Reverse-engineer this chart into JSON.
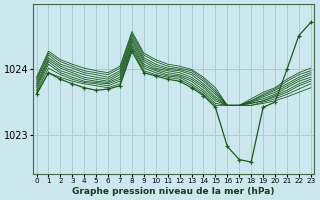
{
  "title": "Graphe pression niveau de la mer (hPa)",
  "background_color": "#cce8ee",
  "grid_color": "#aaccd4",
  "line_color": "#1a5c1a",
  "x_labels": [
    "0",
    "1",
    "2",
    "3",
    "4",
    "5",
    "6",
    "7",
    "8",
    "9",
    "10",
    "11",
    "12",
    "13",
    "14",
    "15",
    "16",
    "17",
    "18",
    "19",
    "20",
    "21",
    "22",
    "23"
  ],
  "yticks": [
    1023,
    1024
  ],
  "ylim": [
    1022.4,
    1025.0
  ],
  "xlim": [
    -0.3,
    23.3
  ],
  "main_line": {
    "x": [
      0,
      1,
      2,
      3,
      4,
      5,
      6,
      7,
      8,
      9,
      10,
      11,
      12,
      13,
      14,
      15,
      16,
      17,
      18,
      19,
      20,
      21,
      22,
      23
    ],
    "y": [
      1023.62,
      1023.95,
      1023.85,
      1023.78,
      1023.72,
      1023.68,
      1023.7,
      1023.75,
      1024.28,
      1023.95,
      1023.9,
      1023.85,
      1023.82,
      1023.72,
      1023.6,
      1023.42,
      1022.82,
      1022.62,
      1022.58,
      1023.42,
      1023.5,
      1024.0,
      1024.52,
      1024.72
    ]
  },
  "envelope_lines": [
    {
      "x": [
        0,
        1,
        2,
        3,
        4,
        5,
        6,
        7,
        8,
        9,
        10,
        11,
        12,
        13,
        14,
        15,
        16,
        17,
        18,
        19,
        20,
        21,
        22,
        23
      ],
      "y": [
        1023.62,
        1023.95,
        1023.88,
        1023.82,
        1023.78,
        1023.75,
        1023.72,
        1023.78,
        1024.32,
        1023.98,
        1023.92,
        1023.88,
        1023.85,
        1023.75,
        1023.62,
        1023.45,
        1023.45,
        1023.45,
        1023.45,
        1023.48,
        1023.52,
        1023.58,
        1023.65,
        1023.72
      ]
    },
    {
      "x": [
        0,
        1,
        2,
        3,
        4,
        5,
        6,
        7,
        8,
        9,
        10,
        11,
        12,
        13,
        14,
        15,
        16,
        17,
        18,
        19,
        20,
        21,
        22,
        23
      ],
      "y": [
        1023.65,
        1024.02,
        1023.92,
        1023.85,
        1023.8,
        1023.78,
        1023.75,
        1023.82,
        1024.35,
        1024.02,
        1023.95,
        1023.9,
        1023.88,
        1023.78,
        1023.65,
        1023.48,
        1023.45,
        1023.45,
        1023.45,
        1023.5,
        1023.55,
        1023.62,
        1023.7,
        1023.78
      ]
    },
    {
      "x": [
        0,
        1,
        2,
        3,
        4,
        5,
        6,
        7,
        8,
        9,
        10,
        11,
        12,
        13,
        14,
        15,
        16,
        17,
        18,
        19,
        20,
        21,
        22,
        23
      ],
      "y": [
        1023.68,
        1024.08,
        1023.95,
        1023.88,
        1023.82,
        1023.8,
        1023.78,
        1023.85,
        1024.38,
        1024.05,
        1023.98,
        1023.92,
        1023.9,
        1023.82,
        1023.68,
        1023.52,
        1023.45,
        1023.45,
        1023.48,
        1023.52,
        1023.58,
        1023.65,
        1023.75,
        1023.82
      ]
    },
    {
      "x": [
        0,
        1,
        2,
        3,
        4,
        5,
        6,
        7,
        8,
        9,
        10,
        11,
        12,
        13,
        14,
        15,
        16,
        17,
        18,
        19,
        20,
        21,
        22,
        23
      ],
      "y": [
        1023.72,
        1024.12,
        1023.98,
        1023.92,
        1023.85,
        1023.82,
        1023.8,
        1023.88,
        1024.42,
        1024.08,
        1024.0,
        1023.95,
        1023.92,
        1023.85,
        1023.72,
        1023.55,
        1023.45,
        1023.45,
        1023.48,
        1023.52,
        1023.6,
        1023.68,
        1023.78,
        1023.85
      ]
    },
    {
      "x": [
        0,
        1,
        2,
        3,
        4,
        5,
        6,
        7,
        8,
        9,
        10,
        11,
        12,
        13,
        14,
        15,
        16,
        17,
        18,
        19,
        20,
        21,
        22,
        23
      ],
      "y": [
        1023.75,
        1024.15,
        1024.02,
        1023.95,
        1023.88,
        1023.85,
        1023.82,
        1023.92,
        1024.45,
        1024.12,
        1024.02,
        1023.98,
        1023.95,
        1023.88,
        1023.75,
        1023.58,
        1023.45,
        1023.45,
        1023.5,
        1023.55,
        1023.62,
        1023.72,
        1023.82,
        1023.88
      ]
    },
    {
      "x": [
        0,
        1,
        2,
        3,
        4,
        5,
        6,
        7,
        8,
        9,
        10,
        11,
        12,
        13,
        14,
        15,
        16,
        17,
        18,
        19,
        20,
        21,
        22,
        23
      ],
      "y": [
        1023.78,
        1024.18,
        1024.05,
        1023.98,
        1023.92,
        1023.88,
        1023.85,
        1023.95,
        1024.48,
        1024.15,
        1024.05,
        1024.0,
        1023.98,
        1023.92,
        1023.78,
        1023.62,
        1023.45,
        1023.45,
        1023.5,
        1023.58,
        1023.65,
        1023.75,
        1023.85,
        1023.92
      ]
    },
    {
      "x": [
        0,
        1,
        2,
        3,
        4,
        5,
        6,
        7,
        8,
        9,
        10,
        11,
        12,
        13,
        14,
        15,
        16,
        17,
        18,
        19,
        20,
        21,
        22,
        23
      ],
      "y": [
        1023.82,
        1024.22,
        1024.08,
        1024.02,
        1023.95,
        1023.92,
        1023.88,
        1023.98,
        1024.52,
        1024.18,
        1024.08,
        1024.02,
        1024.0,
        1023.95,
        1023.82,
        1023.65,
        1023.45,
        1023.45,
        1023.52,
        1023.6,
        1023.68,
        1023.78,
        1023.88,
        1023.95
      ]
    },
    {
      "x": [
        0,
        1,
        2,
        3,
        4,
        5,
        6,
        7,
        8,
        9,
        10,
        11,
        12,
        13,
        14,
        15,
        16,
        17,
        18,
        19,
        20,
        21,
        22,
        23
      ],
      "y": [
        1023.85,
        1024.25,
        1024.12,
        1024.05,
        1023.98,
        1023.95,
        1023.92,
        1024.02,
        1024.55,
        1024.22,
        1024.12,
        1024.05,
        1024.02,
        1023.98,
        1023.85,
        1023.68,
        1023.45,
        1023.45,
        1023.52,
        1023.62,
        1023.7,
        1023.82,
        1023.92,
        1023.98
      ]
    },
    {
      "x": [
        0,
        1,
        2,
        3,
        4,
        5,
        6,
        7,
        8,
        9,
        10,
        11,
        12,
        13,
        14,
        15,
        16,
        17,
        18,
        19,
        20,
        21,
        22,
        23
      ],
      "y": [
        1023.88,
        1024.28,
        1024.15,
        1024.08,
        1024.02,
        1023.98,
        1023.95,
        1024.05,
        1024.58,
        1024.25,
        1024.15,
        1024.08,
        1024.05,
        1024.0,
        1023.88,
        1023.72,
        1023.45,
        1023.45,
        1023.55,
        1023.65,
        1023.72,
        1023.85,
        1023.95,
        1024.02
      ]
    }
  ]
}
